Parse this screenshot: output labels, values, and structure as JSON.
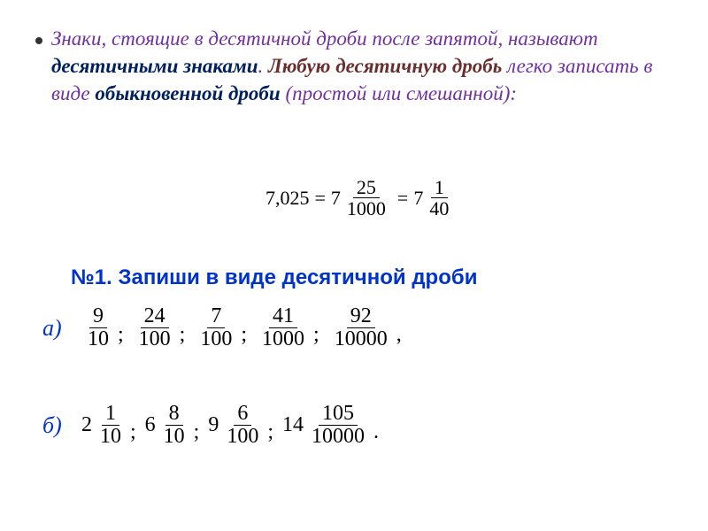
{
  "paragraph": {
    "p1": "Знаки, стоящие в десятичной дроби после запятой, называют ",
    "term1": "десятичными знаками",
    "p2": ". ",
    "p3": "Любую десятичную дробь",
    "p4": " легко записать в виде ",
    "term2": "обыкновенной дроби",
    "p5": " (простой или смешанной):",
    "colors": {
      "purple": "#7030a0",
      "darkred": "#6b2e2e",
      "navy": "#002060",
      "blue": "#0033cc"
    },
    "fontsize": 23
  },
  "example": {
    "lhs": "7,025",
    "f1": {
      "whole": "7",
      "num": "25",
      "den": "1000"
    },
    "f2": {
      "whole": "7",
      "num": "1",
      "den": "40"
    },
    "eq": "=",
    "fontsize": 22
  },
  "task": {
    "title": "№1. Запиши в виде десятичной дроби",
    "fontsize": 24
  },
  "rowA": {
    "label": "а)",
    "items": [
      {
        "num": "9",
        "den": "10"
      },
      {
        "num": "24",
        "den": "100"
      },
      {
        "num": "7",
        "den": "100"
      },
      {
        "num": "41",
        "den": "1000"
      },
      {
        "num": "92",
        "den": "10000"
      }
    ],
    "sep": ";",
    "end": ",",
    "fontsize": 24
  },
  "rowB": {
    "label": "б)",
    "items": [
      {
        "whole": "2",
        "num": "1",
        "den": "10"
      },
      {
        "whole": "6",
        "num": "8",
        "den": "10"
      },
      {
        "whole": "9",
        "num": "6",
        "den": "100"
      },
      {
        "whole": "14",
        "num": "105",
        "den": "10000"
      }
    ],
    "sep": ";",
    "end": ".",
    "fontsize": 24
  }
}
